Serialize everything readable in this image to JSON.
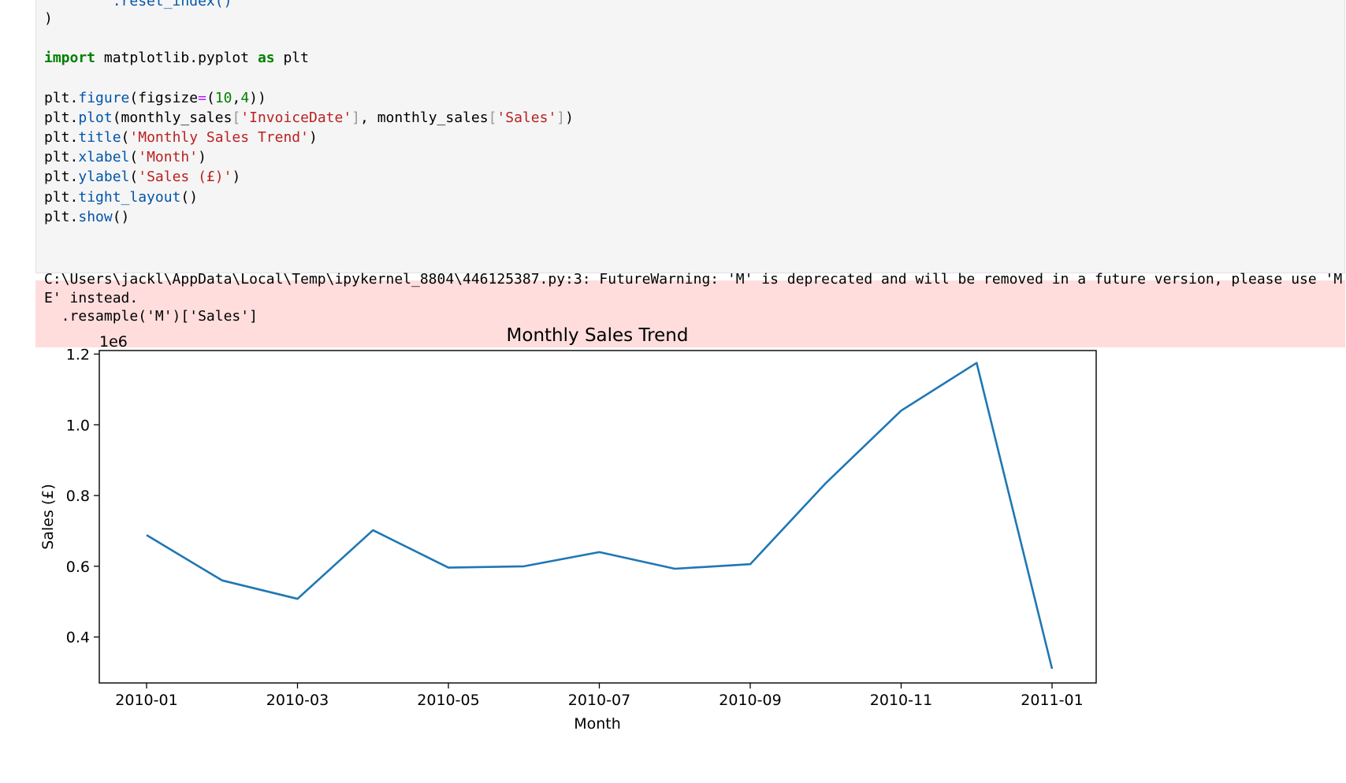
{
  "code": {
    "line0": "        .reset_index()",
    "line1": ")",
    "import_kw": "import",
    "import_mod": " matplotlib.pyplot ",
    "as_kw": "as",
    "import_alias": " plt",
    "l_figure": [
      "plt.",
      "figure",
      "(figsize",
      "=",
      "(",
      "10",
      ",",
      "4",
      "))"
    ],
    "l_plot": [
      "plt.",
      "plot",
      "(monthly_sales",
      "[",
      "'InvoiceDate'",
      "]",
      ", monthly_sales",
      "[",
      "'Sales'",
      "]",
      ")"
    ],
    "l_title": [
      "plt.",
      "title",
      "(",
      "'Monthly Sales Trend'",
      ")"
    ],
    "l_xlabel": [
      "plt.",
      "xlabel",
      "(",
      "'Month'",
      ")"
    ],
    "l_ylabel": [
      "plt.",
      "ylabel",
      "(",
      "'Sales (£)'",
      ")"
    ],
    "l_tight": [
      "plt.",
      "tight_layout",
      "()"
    ],
    "l_show": [
      "plt.",
      "show",
      "()"
    ]
  },
  "stderr": {
    "line1": "C:\\Users\\jackl\\AppData\\Local\\Temp\\ipykernel_8804\\446125387.py:3: FutureWarning: 'M' is deprecated and will be removed in a future version, please use 'M",
    "line2": "E' instead.",
    "line3": "  .resample('M')['Sales']"
  },
  "chart_data": {
    "type": "line",
    "title": "Monthly Sales Trend",
    "xlabel": "Month",
    "ylabel": "Sales (£)",
    "offset_text": "1e6",
    "x": [
      "2010-01",
      "2010-02",
      "2010-03",
      "2010-04",
      "2010-05",
      "2010-06",
      "2010-07",
      "2010-08",
      "2010-09",
      "2010-10",
      "2010-11",
      "2010-12",
      "2011-01"
    ],
    "series": [
      {
        "values": [
          0.688,
          0.56,
          0.508,
          0.702,
          0.596,
          0.6,
          0.64,
          0.593,
          0.606,
          0.835,
          1.04,
          1.175,
          0.31
        ],
        "color": "#1f77b4"
      }
    ],
    "x_ticks": [
      "2010-01",
      "2010-03",
      "2010-05",
      "2010-07",
      "2010-09",
      "2010-11",
      "2011-01"
    ],
    "y_ticks": [
      0.4,
      0.6,
      0.8,
      1.0,
      1.2
    ],
    "y_tick_labels": [
      "0.4",
      "0.6",
      "0.8",
      "1.0",
      "1.2"
    ],
    "ylim": [
      0.27,
      1.21
    ],
    "grid": false
  }
}
